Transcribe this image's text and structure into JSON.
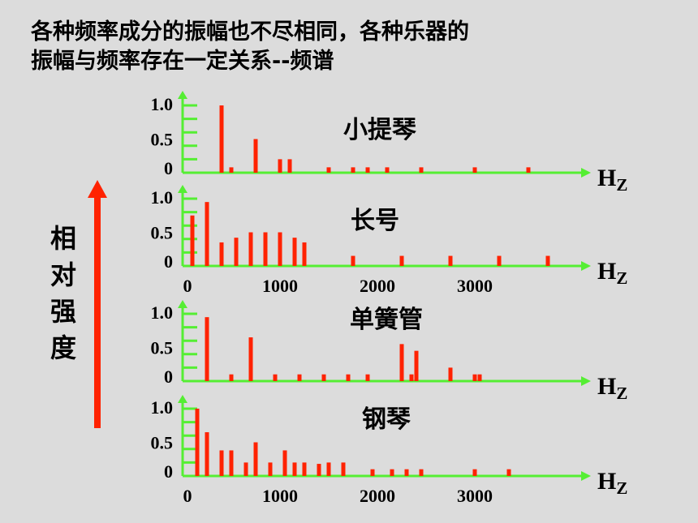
{
  "caption": {
    "line1": "各种频率成分的振幅也不尽相同，各种乐器的",
    "line2": "振幅与频率存在一定关系--频谱"
  },
  "side_label": "相对强度",
  "colors": {
    "bar": "#ff2200",
    "axis": "#55ee33",
    "arrow": "#ff2200"
  },
  "chart_data": [
    {
      "type": "bar",
      "title": "小提琴",
      "unit_main": "H",
      "unit_sub": "Z",
      "yticks": [
        "1.0",
        "0.5",
        "0"
      ],
      "xticks": [],
      "ylim": [
        0,
        1.0
      ],
      "x": [
        400,
        500,
        750,
        1000,
        1100,
        1500,
        1750,
        1900,
        2100,
        2450,
        3000,
        3550
      ],
      "values": [
        1.0,
        0.08,
        0.5,
        0.2,
        0.2,
        0.08,
        0.08,
        0.08,
        0.08,
        0.08,
        0.08,
        0.08
      ]
    },
    {
      "type": "bar",
      "title": "长号",
      "unit_main": "H",
      "unit_sub": "Z",
      "yticks": [
        "1.0",
        "0.5",
        "0"
      ],
      "xticks": [
        "0",
        "1000",
        "2000",
        "3000"
      ],
      "ylim": [
        0,
        1.0
      ],
      "x": [
        100,
        250,
        400,
        550,
        700,
        850,
        1000,
        1150,
        1250,
        1750,
        2250,
        2750,
        3250,
        3750
      ],
      "values": [
        0.75,
        0.95,
        0.35,
        0.42,
        0.5,
        0.5,
        0.5,
        0.42,
        0.35,
        0.15,
        0.15,
        0.15,
        0.15,
        0.15
      ]
    },
    {
      "type": "bar",
      "title": "单簧管",
      "unit_main": "H",
      "unit_sub": "Z",
      "yticks": [
        "1.0",
        "0.5",
        "0"
      ],
      "xticks": [],
      "ylim": [
        0,
        1.0
      ],
      "x": [
        250,
        500,
        700,
        950,
        1200,
        1450,
        1700,
        1900,
        2250,
        2350,
        2400,
        2750,
        3000,
        3050
      ],
      "values": [
        0.95,
        0.1,
        0.65,
        0.1,
        0.1,
        0.1,
        0.1,
        0.1,
        0.55,
        0.1,
        0.45,
        0.2,
        0.1,
        0.1
      ]
    },
    {
      "type": "bar",
      "title": "钢琴",
      "unit_main": "H",
      "unit_sub": "Z",
      "yticks": [
        "1.0",
        "0.5",
        "0"
      ],
      "xticks": [
        "0",
        "1000",
        "2000",
        "3000"
      ],
      "ylim": [
        0,
        1.0
      ],
      "x": [
        150,
        250,
        400,
        500,
        650,
        750,
        900,
        1050,
        1150,
        1250,
        1400,
        1500,
        1650,
        1950,
        2150,
        2300,
        2450,
        3000,
        3350
      ],
      "values": [
        1.0,
        0.65,
        0.38,
        0.38,
        0.2,
        0.5,
        0.2,
        0.38,
        0.2,
        0.2,
        0.18,
        0.2,
        0.2,
        0.1,
        0.1,
        0.1,
        0.1,
        0.1,
        0.1
      ]
    }
  ]
}
